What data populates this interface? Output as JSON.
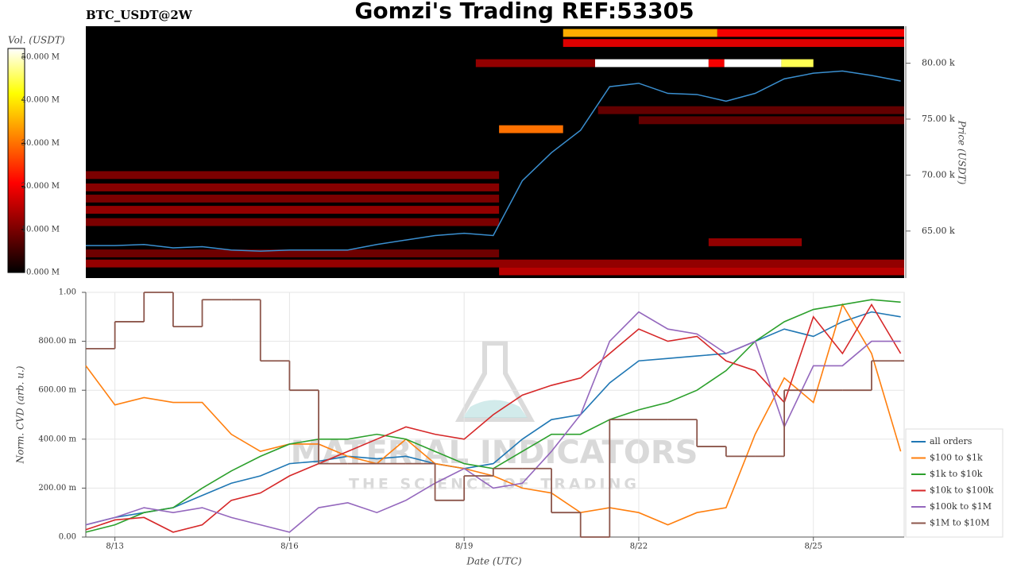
{
  "title": "Gomzi's Trading REF:53305",
  "symbol": "BTC_USDT@2W",
  "watermark": {
    "name": "MATERIAL INDICATORS",
    "tagline": "THE SCIENCE OF TRADING"
  },
  "chart_data": [
    {
      "type": "heatmap",
      "ylabel": "Price (USDT)",
      "colorbar_label": "Vol. (USDT)",
      "line_color": "#3a8fd0",
      "x": [
        12.5,
        13,
        13.5,
        14,
        14.5,
        15,
        15.5,
        16,
        16.5,
        17,
        17.5,
        18,
        18.5,
        19,
        19.5,
        20,
        20.5,
        21,
        21.5,
        22,
        22.5,
        23,
        23.5,
        24,
        24.5,
        25,
        25.5,
        26,
        26.5
      ],
      "values": [
        63700,
        63700,
        63800,
        63500,
        63600,
        63300,
        63200,
        63300,
        63300,
        63300,
        63800,
        64200,
        64600,
        64800,
        64600,
        69500,
        72000,
        74000,
        77900,
        78200,
        77300,
        77200,
        76600,
        77300,
        78600,
        79100,
        79300,
        78900,
        78400
      ],
      "y_bin": 700,
      "levels": [
        {
          "x": [
            20.7,
            23.35
          ],
          "y": 82700,
          "value": 35000000
        },
        {
          "x": [
            23.35,
            26.56
          ],
          "y": 82700,
          "value": 20000000
        },
        {
          "x": [
            20.7,
            26.56
          ],
          "y": 81800,
          "value": 18000000
        },
        {
          "x": [
            19.2,
            21.25
          ],
          "y": 80000,
          "value": 12000000
        },
        {
          "x": [
            21.25,
            23.2
          ],
          "y": 80000,
          "value": 52000000
        },
        {
          "x": [
            23.2,
            23.47
          ],
          "y": 80000,
          "value": 20000000
        },
        {
          "x": [
            23.47,
            24.45
          ],
          "y": 80000,
          "value": 52000000
        },
        {
          "x": [
            24.45,
            25.0
          ],
          "y": 80000,
          "value": 45000000
        },
        {
          "x": [
            19.6,
            20.7
          ],
          "y": 74100,
          "value": 30000000
        },
        {
          "x": [
            21.3,
            26.56
          ],
          "y": 75800,
          "value": 8000000
        },
        {
          "x": [
            22.0,
            26.56
          ],
          "y": 74900,
          "value": 8000000
        },
        {
          "x": [
            12.5,
            19.6
          ],
          "y": 70000,
          "value": 10000000
        },
        {
          "x": [
            12.5,
            19.6
          ],
          "y": 68900,
          "value": 11000000
        },
        {
          "x": [
            12.5,
            19.6
          ],
          "y": 67900,
          "value": 10000000
        },
        {
          "x": [
            12.5,
            19.6
          ],
          "y": 66900,
          "value": 12000000
        },
        {
          "x": [
            12.5,
            19.6
          ],
          "y": 65800,
          "value": 10000000
        },
        {
          "x": [
            23.2,
            24.8
          ],
          "y": 64000,
          "value": 12000000
        },
        {
          "x": [
            12.5,
            19.6
          ],
          "y": 63000,
          "value": 9000000
        },
        {
          "x": [
            12.5,
            26.56
          ],
          "y": 62100,
          "value": 12000000
        },
        {
          "x": [
            19.6,
            26.56
          ],
          "y": 61400,
          "value": 15000000
        }
      ],
      "xlim": [
        12.5,
        26.56
      ],
      "ylim": [
        60800,
        83300
      ],
      "yticks": [
        {
          "value": 65000,
          "label": "65.00 k"
        },
        {
          "value": 70000,
          "label": "70.00 k"
        },
        {
          "value": 75000,
          "label": "75.00 k"
        },
        {
          "value": 80000,
          "label": "80.00 k"
        }
      ],
      "zlim": [
        0,
        52000000
      ],
      "zticks": [
        {
          "value": 0,
          "label": "0.000 M"
        },
        {
          "value": 10000000,
          "label": "10.000 M"
        },
        {
          "value": 20000000,
          "label": "20.000 M"
        },
        {
          "value": 30000000,
          "label": "30.000 M"
        },
        {
          "value": 40000000,
          "label": "40.000 M"
        },
        {
          "value": 50000000,
          "label": "50.000 M"
        }
      ]
    },
    {
      "type": "line",
      "xlabel": "Date (UTC)",
      "ylabel": "Norm. CVD (arb. u.)",
      "x": [
        12.5,
        13,
        13.5,
        14,
        14.5,
        15,
        15.5,
        16,
        16.5,
        17,
        17.5,
        18,
        18.5,
        19,
        19.5,
        20,
        20.5,
        21,
        21.5,
        22,
        22.5,
        23,
        23.5,
        24,
        24.5,
        25,
        25.5,
        26,
        26.5
      ],
      "series": [
        {
          "name": "all orders",
          "color": "#1f77b4",
          "values": [
            0.05,
            0.08,
            0.1,
            0.12,
            0.17,
            0.22,
            0.25,
            0.3,
            0.31,
            0.33,
            0.32,
            0.33,
            0.3,
            0.28,
            0.3,
            0.4,
            0.48,
            0.5,
            0.63,
            0.72,
            0.73,
            0.74,
            0.75,
            0.8,
            0.85,
            0.82,
            0.88,
            0.92,
            0.9
          ]
        },
        {
          "name": "$100 to $1k",
          "color": "#ff7f0e",
          "values": [
            0.7,
            0.54,
            0.57,
            0.55,
            0.55,
            0.42,
            0.35,
            0.38,
            0.38,
            0.33,
            0.3,
            0.4,
            0.3,
            0.28,
            0.25,
            0.2,
            0.18,
            0.1,
            0.12,
            0.1,
            0.05,
            0.1,
            0.12,
            0.42,
            0.65,
            0.55,
            0.95,
            0.75,
            0.35
          ]
        },
        {
          "name": "$1k to $10k",
          "color": "#2ca02c",
          "values": [
            0.02,
            0.05,
            0.1,
            0.12,
            0.2,
            0.27,
            0.33,
            0.38,
            0.4,
            0.4,
            0.42,
            0.4,
            0.35,
            0.3,
            0.28,
            0.35,
            0.42,
            0.42,
            0.48,
            0.52,
            0.55,
            0.6,
            0.68,
            0.8,
            0.88,
            0.93,
            0.95,
            0.97,
            0.96
          ]
        },
        {
          "name": "$10k to $100k",
          "color": "#d62728",
          "values": [
            0.03,
            0.07,
            0.08,
            0.02,
            0.05,
            0.15,
            0.18,
            0.25,
            0.3,
            0.35,
            0.4,
            0.45,
            0.42,
            0.4,
            0.5,
            0.58,
            0.62,
            0.65,
            0.75,
            0.85,
            0.8,
            0.82,
            0.72,
            0.68,
            0.55,
            0.9,
            0.75,
            0.95,
            0.75
          ]
        },
        {
          "name": "$100k to $1M",
          "color": "#9467bd",
          "values": [
            0.05,
            0.08,
            0.12,
            0.1,
            0.12,
            0.08,
            0.05,
            0.02,
            0.12,
            0.14,
            0.1,
            0.15,
            0.22,
            0.28,
            0.2,
            0.22,
            0.35,
            0.5,
            0.8,
            0.92,
            0.85,
            0.83,
            0.75,
            0.8,
            0.45,
            0.7,
            0.7,
            0.8,
            0.8
          ]
        },
        {
          "name": "$1M to $10M",
          "color": "#8c564b",
          "step": true,
          "values": [
            0.77,
            0.88,
            1.0,
            0.86,
            0.97,
            0.97,
            0.72,
            0.6,
            0.3,
            0.3,
            0.3,
            0.3,
            0.15,
            0.25,
            0.28,
            0.28,
            0.1,
            0.0,
            0.48,
            0.48,
            0.48,
            0.37,
            0.33,
            0.33,
            0.6,
            0.6,
            0.6,
            0.72,
            0.72
          ]
        }
      ],
      "xlim": [
        12.5,
        26.56
      ],
      "ylim": [
        0,
        1
      ],
      "xticks": [
        {
          "value": 13,
          "label": "8/13"
        },
        {
          "value": 16,
          "label": "8/16"
        },
        {
          "value": 19,
          "label": "8/19"
        },
        {
          "value": 22,
          "label": "8/22"
        },
        {
          "value": 25,
          "label": "8/25"
        }
      ],
      "yticks": [
        {
          "value": 0,
          "label": "0.00"
        },
        {
          "value": 0.2,
          "label": "200.00 m"
        },
        {
          "value": 0.4,
          "label": "400.00 m"
        },
        {
          "value": 0.6,
          "label": "600.00 m"
        },
        {
          "value": 0.8,
          "label": "800.00 m"
        },
        {
          "value": 1,
          "label": "1.00"
        }
      ],
      "grid": true,
      "legend": "lower right"
    }
  ]
}
